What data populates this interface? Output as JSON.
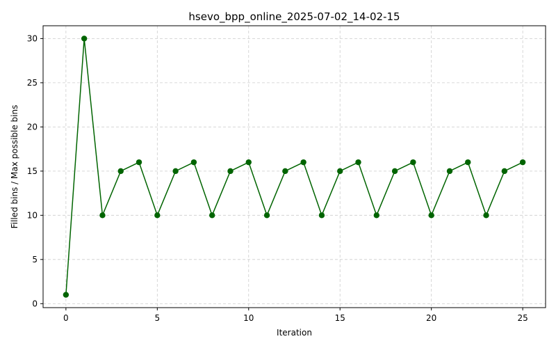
{
  "chart_data": {
    "type": "line",
    "title": "hsevo_bpp_online_2025-07-02_14-02-15",
    "xlabel": "Iteration",
    "ylabel": "Filled bins / Max possible bins",
    "xlim": [
      -1.25,
      26.25
    ],
    "ylim": [
      -0.45,
      31.45
    ],
    "xticks": [
      0,
      5,
      10,
      15,
      20,
      25
    ],
    "yticks": [
      0,
      5,
      10,
      15,
      20,
      25,
      30
    ],
    "grid": true,
    "color": "#006400",
    "series": [
      {
        "x": [
          0,
          1,
          2,
          3,
          4,
          5,
          6,
          7,
          8,
          9,
          10,
          11,
          12,
          13,
          14,
          15,
          16,
          17,
          18,
          19,
          20,
          21,
          22,
          23,
          24,
          25
        ],
        "values": [
          1,
          30,
          10,
          15,
          16,
          10,
          15,
          16,
          10,
          15,
          16,
          10,
          15,
          16,
          10,
          15,
          16,
          10,
          15,
          16,
          10,
          15,
          16,
          10,
          15,
          16
        ]
      }
    ]
  }
}
